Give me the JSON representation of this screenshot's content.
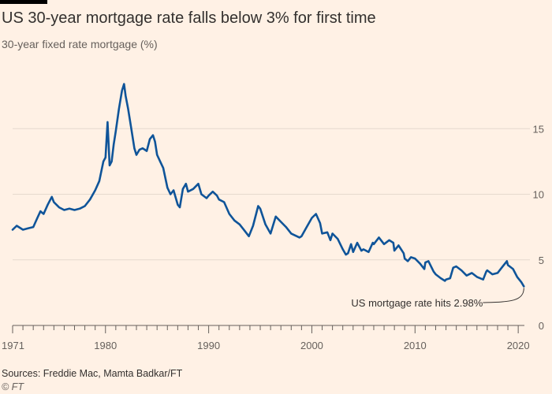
{
  "header": {
    "title": "US 30-year mortgage rate falls below 3% for first time",
    "subtitle": "30-year fixed rate mortgage (%)"
  },
  "footer": {
    "source": "Sources: Freddie Mac, Mamta Badkar/FT",
    "credit": "© FT"
  },
  "colors": {
    "background": "#fff1e5",
    "line": "#0f5499",
    "grid": "#e6d9ce",
    "axis": "#66605c",
    "text": "#33302e"
  },
  "chart_data": {
    "type": "line",
    "title": "US 30-year mortgage rate falls below 3% for first time",
    "subtitle": "30-year fixed rate mortgage (%)",
    "xlabel": "",
    "ylabel": "",
    "xlim": [
      1971,
      2020.6
    ],
    "ylim": [
      0,
      20
    ],
    "y_ticks": [
      0,
      5,
      10,
      15
    ],
    "y_tick_labels": [
      "0",
      "5",
      "10",
      "15"
    ],
    "x_ticks": [
      1971,
      1980,
      1990,
      2000,
      2010,
      2020
    ],
    "x_tick_labels": [
      "1971",
      "1980",
      "1990",
      "2000",
      "2010",
      "2020"
    ],
    "grid": "horizontal",
    "y_axis_side": "right",
    "annotation": {
      "text": "US mortgage rate hits 2.98%",
      "x": 2020.55,
      "y": 2.98
    },
    "series": [
      {
        "name": "",
        "x": [
          1971.0,
          1971.4,
          1972.0,
          1972.5,
          1973.0,
          1973.4,
          1973.7,
          1974.0,
          1974.4,
          1974.8,
          1975.0,
          1975.5,
          1976.0,
          1976.5,
          1977.0,
          1977.5,
          1978.0,
          1978.5,
          1979.0,
          1979.4,
          1979.8,
          1980.0,
          1980.2,
          1980.4,
          1980.6,
          1980.8,
          1981.0,
          1981.3,
          1981.6,
          1981.8,
          1981.95,
          1982.2,
          1982.5,
          1982.8,
          1983.0,
          1983.3,
          1983.6,
          1984.0,
          1984.3,
          1984.6,
          1984.8,
          1985.0,
          1985.3,
          1985.6,
          1986.0,
          1986.3,
          1986.6,
          1987.0,
          1987.2,
          1987.5,
          1987.8,
          1988.0,
          1988.5,
          1989.0,
          1989.3,
          1989.8,
          1990.0,
          1990.4,
          1990.8,
          1991.0,
          1991.5,
          1992.0,
          1992.5,
          1993.0,
          1993.5,
          1993.9,
          1994.3,
          1994.8,
          1995.0,
          1995.5,
          1996.0,
          1996.5,
          1997.0,
          1997.5,
          1998.0,
          1998.8,
          1999.0,
          1999.5,
          2000.0,
          2000.4,
          2000.8,
          2001.0,
          2001.5,
          2001.8,
          2002.0,
          2002.5,
          2003.0,
          2003.3,
          2003.5,
          2003.8,
          2004.0,
          2004.4,
          2004.8,
          2005.0,
          2005.5,
          2005.9,
          2006.0,
          2006.5,
          2007.0,
          2007.5,
          2007.9,
          2008.0,
          2008.4,
          2008.9,
          2009.0,
          2009.3,
          2009.6,
          2010.0,
          2010.5,
          2010.9,
          2011.0,
          2011.3,
          2011.8,
          2012.0,
          2012.5,
          2012.9,
          2013.0,
          2013.4,
          2013.7,
          2014.0,
          2014.5,
          2015.0,
          2015.5,
          2016.0,
          2016.6,
          2016.9,
          2017.0,
          2017.5,
          2018.0,
          2018.5,
          2018.9,
          2019.0,
          2019.5,
          2019.9,
          2020.0,
          2020.3,
          2020.55
        ],
        "values": [
          7.3,
          7.6,
          7.3,
          7.4,
          7.5,
          8.2,
          8.7,
          8.5,
          9.2,
          9.8,
          9.4,
          9.0,
          8.8,
          8.9,
          8.8,
          8.9,
          9.1,
          9.6,
          10.3,
          11.0,
          12.5,
          12.8,
          15.5,
          12.2,
          12.5,
          13.8,
          14.8,
          16.5,
          17.9,
          18.4,
          17.5,
          16.5,
          15.0,
          13.5,
          13.0,
          13.4,
          13.5,
          13.3,
          14.2,
          14.5,
          14.0,
          13.0,
          12.5,
          12.0,
          10.5,
          10.0,
          10.3,
          9.2,
          9.0,
          10.4,
          10.8,
          10.2,
          10.4,
          10.8,
          10.0,
          9.7,
          9.9,
          10.2,
          9.9,
          9.6,
          9.4,
          8.5,
          8.0,
          7.7,
          7.2,
          6.8,
          7.6,
          9.1,
          8.9,
          7.7,
          7.0,
          8.3,
          7.9,
          7.5,
          7.0,
          6.7,
          6.8,
          7.5,
          8.2,
          8.5,
          7.8,
          7.0,
          7.1,
          6.5,
          7.0,
          6.6,
          5.8,
          5.4,
          5.5,
          6.2,
          5.6,
          6.3,
          5.7,
          5.8,
          5.6,
          6.3,
          6.2,
          6.7,
          6.2,
          6.5,
          6.3,
          5.7,
          6.1,
          5.5,
          5.1,
          4.9,
          5.2,
          5.1,
          4.7,
          4.3,
          4.8,
          4.9,
          4.1,
          3.9,
          3.6,
          3.4,
          3.5,
          3.6,
          4.4,
          4.5,
          4.2,
          3.8,
          4.0,
          3.7,
          3.5,
          4.1,
          4.2,
          3.9,
          4.0,
          4.5,
          4.9,
          4.6,
          4.3,
          3.7,
          3.6,
          3.3,
          2.98
        ]
      }
    ]
  }
}
